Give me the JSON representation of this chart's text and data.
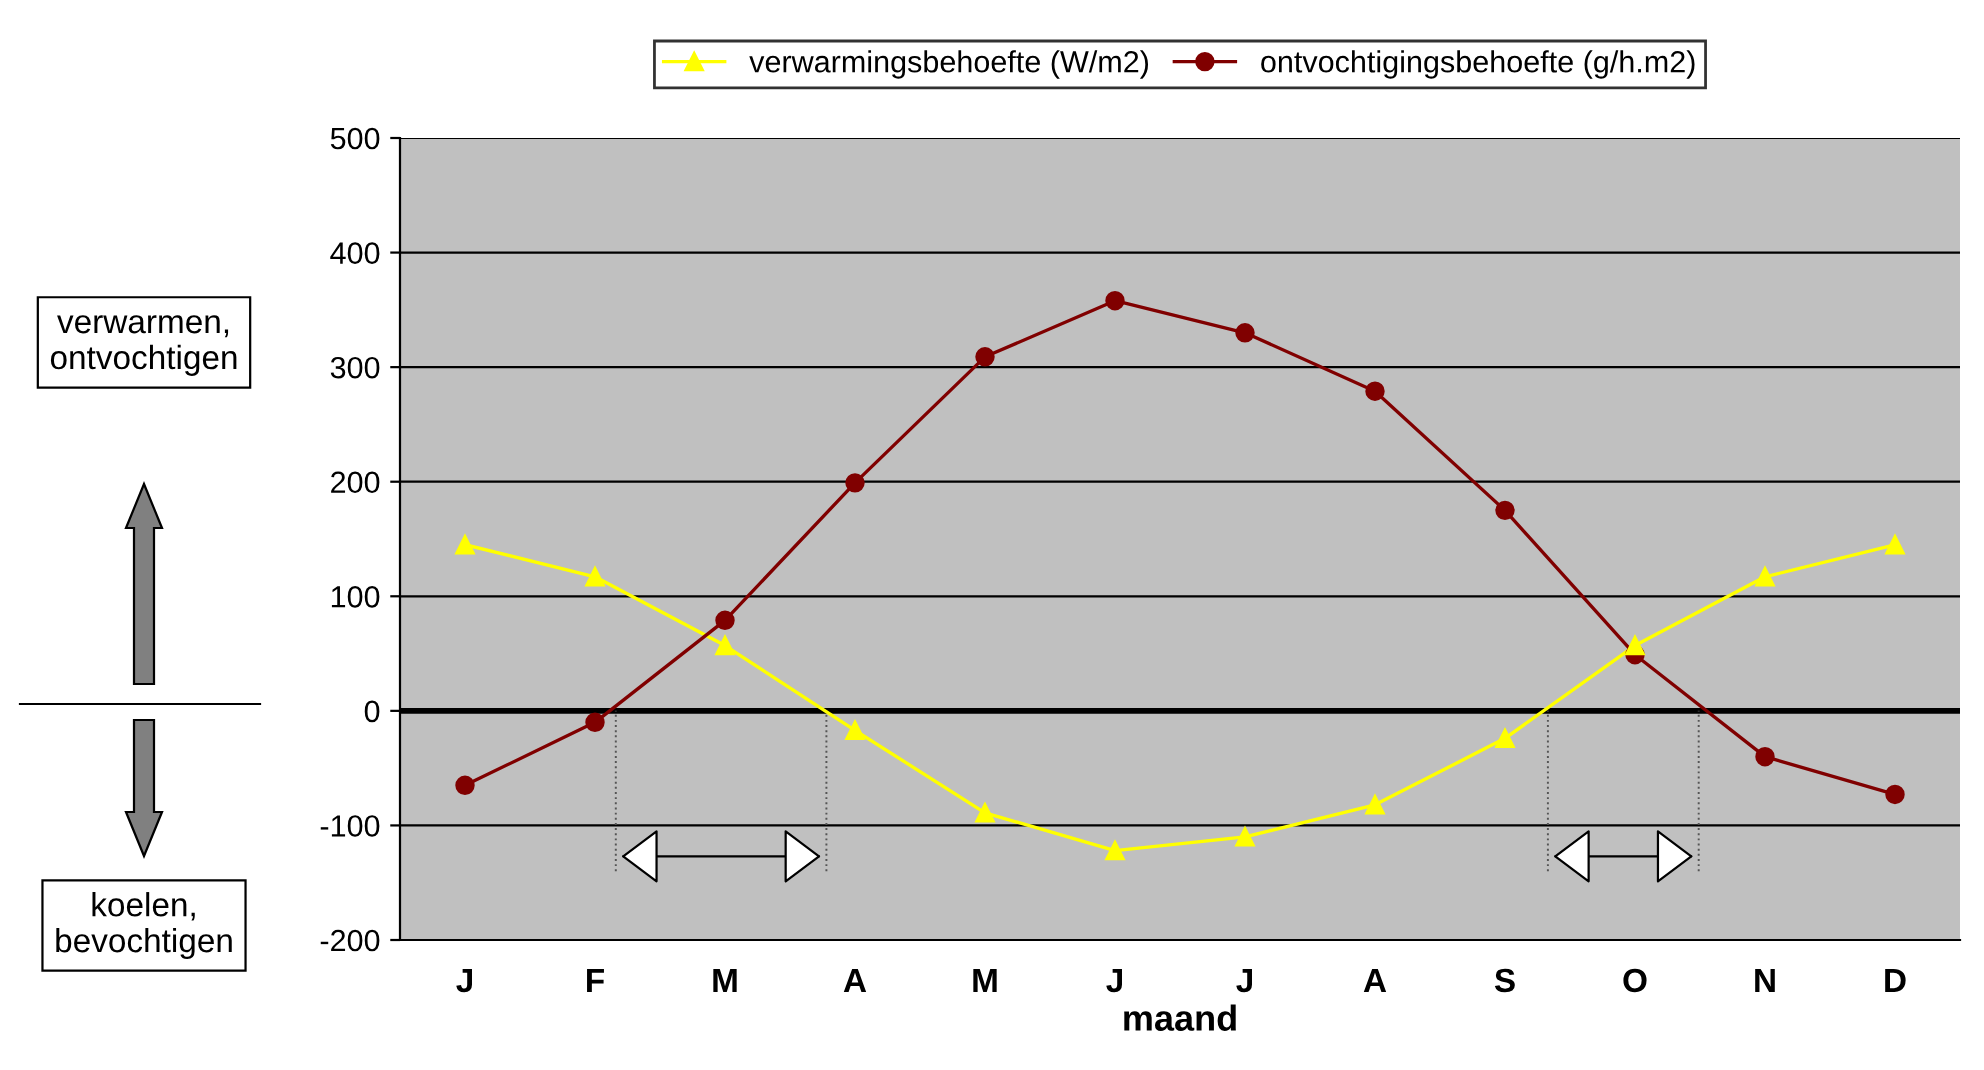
{
  "chart_data": {
    "type": "line",
    "xlabel": "maand",
    "categories": [
      "J",
      "F",
      "M",
      "A",
      "M",
      "J",
      "J",
      "A",
      "S",
      "O",
      "N",
      "D"
    ],
    "series": [
      {
        "name": "verwarmingsbehoefte (W/m2)",
        "color": "#ffff00",
        "marker": "triangle",
        "values": [
          145,
          117,
          57,
          -17,
          -89,
          -122,
          -110,
          -82,
          -24,
          57,
          117,
          145
        ]
      },
      {
        "name": "ontvochtigingsbehoefte (g/h.m2)",
        "color": "#800000",
        "marker": "circle",
        "values": [
          -65,
          -10,
          79,
          199,
          309,
          358,
          330,
          279,
          175,
          49,
          -40,
          -73
        ]
      }
    ],
    "ylim": [
      -200,
      500
    ],
    "yticks": [
      -200,
      -100,
      0,
      100,
      200,
      300,
      400,
      500
    ],
    "grid": "y",
    "legend": "top",
    "ref_lines": [
      {
        "axis": "y",
        "value": 0,
        "color": "#000000"
      }
    ],
    "annotations": [
      "verwarmen,\nontvochtigen",
      "koelen,\nbevochtigen"
    ]
  }
}
